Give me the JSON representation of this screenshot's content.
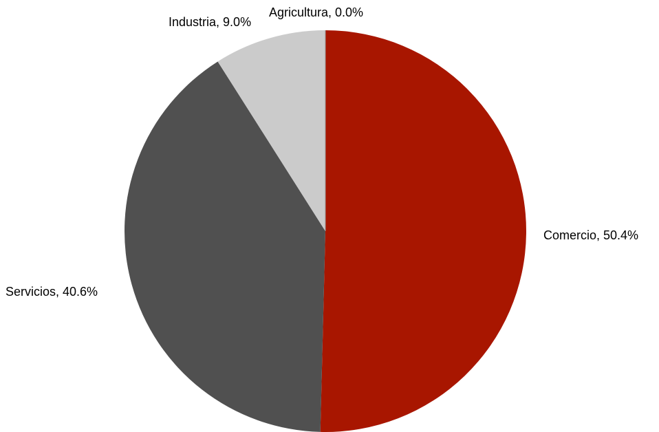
{
  "chart_data": {
    "type": "pie",
    "title": "",
    "series": [
      {
        "categories": [
          "Comercio",
          "Servicios",
          "Industria",
          "Agricultura"
        ],
        "values": [
          50.4,
          40.6,
          9.0,
          0.0
        ],
        "labels": [
          "Comercio, 50.4%",
          "Servicios, 40.6%",
          "Industria, 9.0%",
          "Agricultura, 0.0%"
        ],
        "colors": [
          "#a81600",
          "#505050",
          "#cbcbcb",
          "#9a9a9a"
        ]
      }
    ],
    "start_angle": "12 o'clock",
    "direction": "clockwise",
    "legend": "none"
  }
}
